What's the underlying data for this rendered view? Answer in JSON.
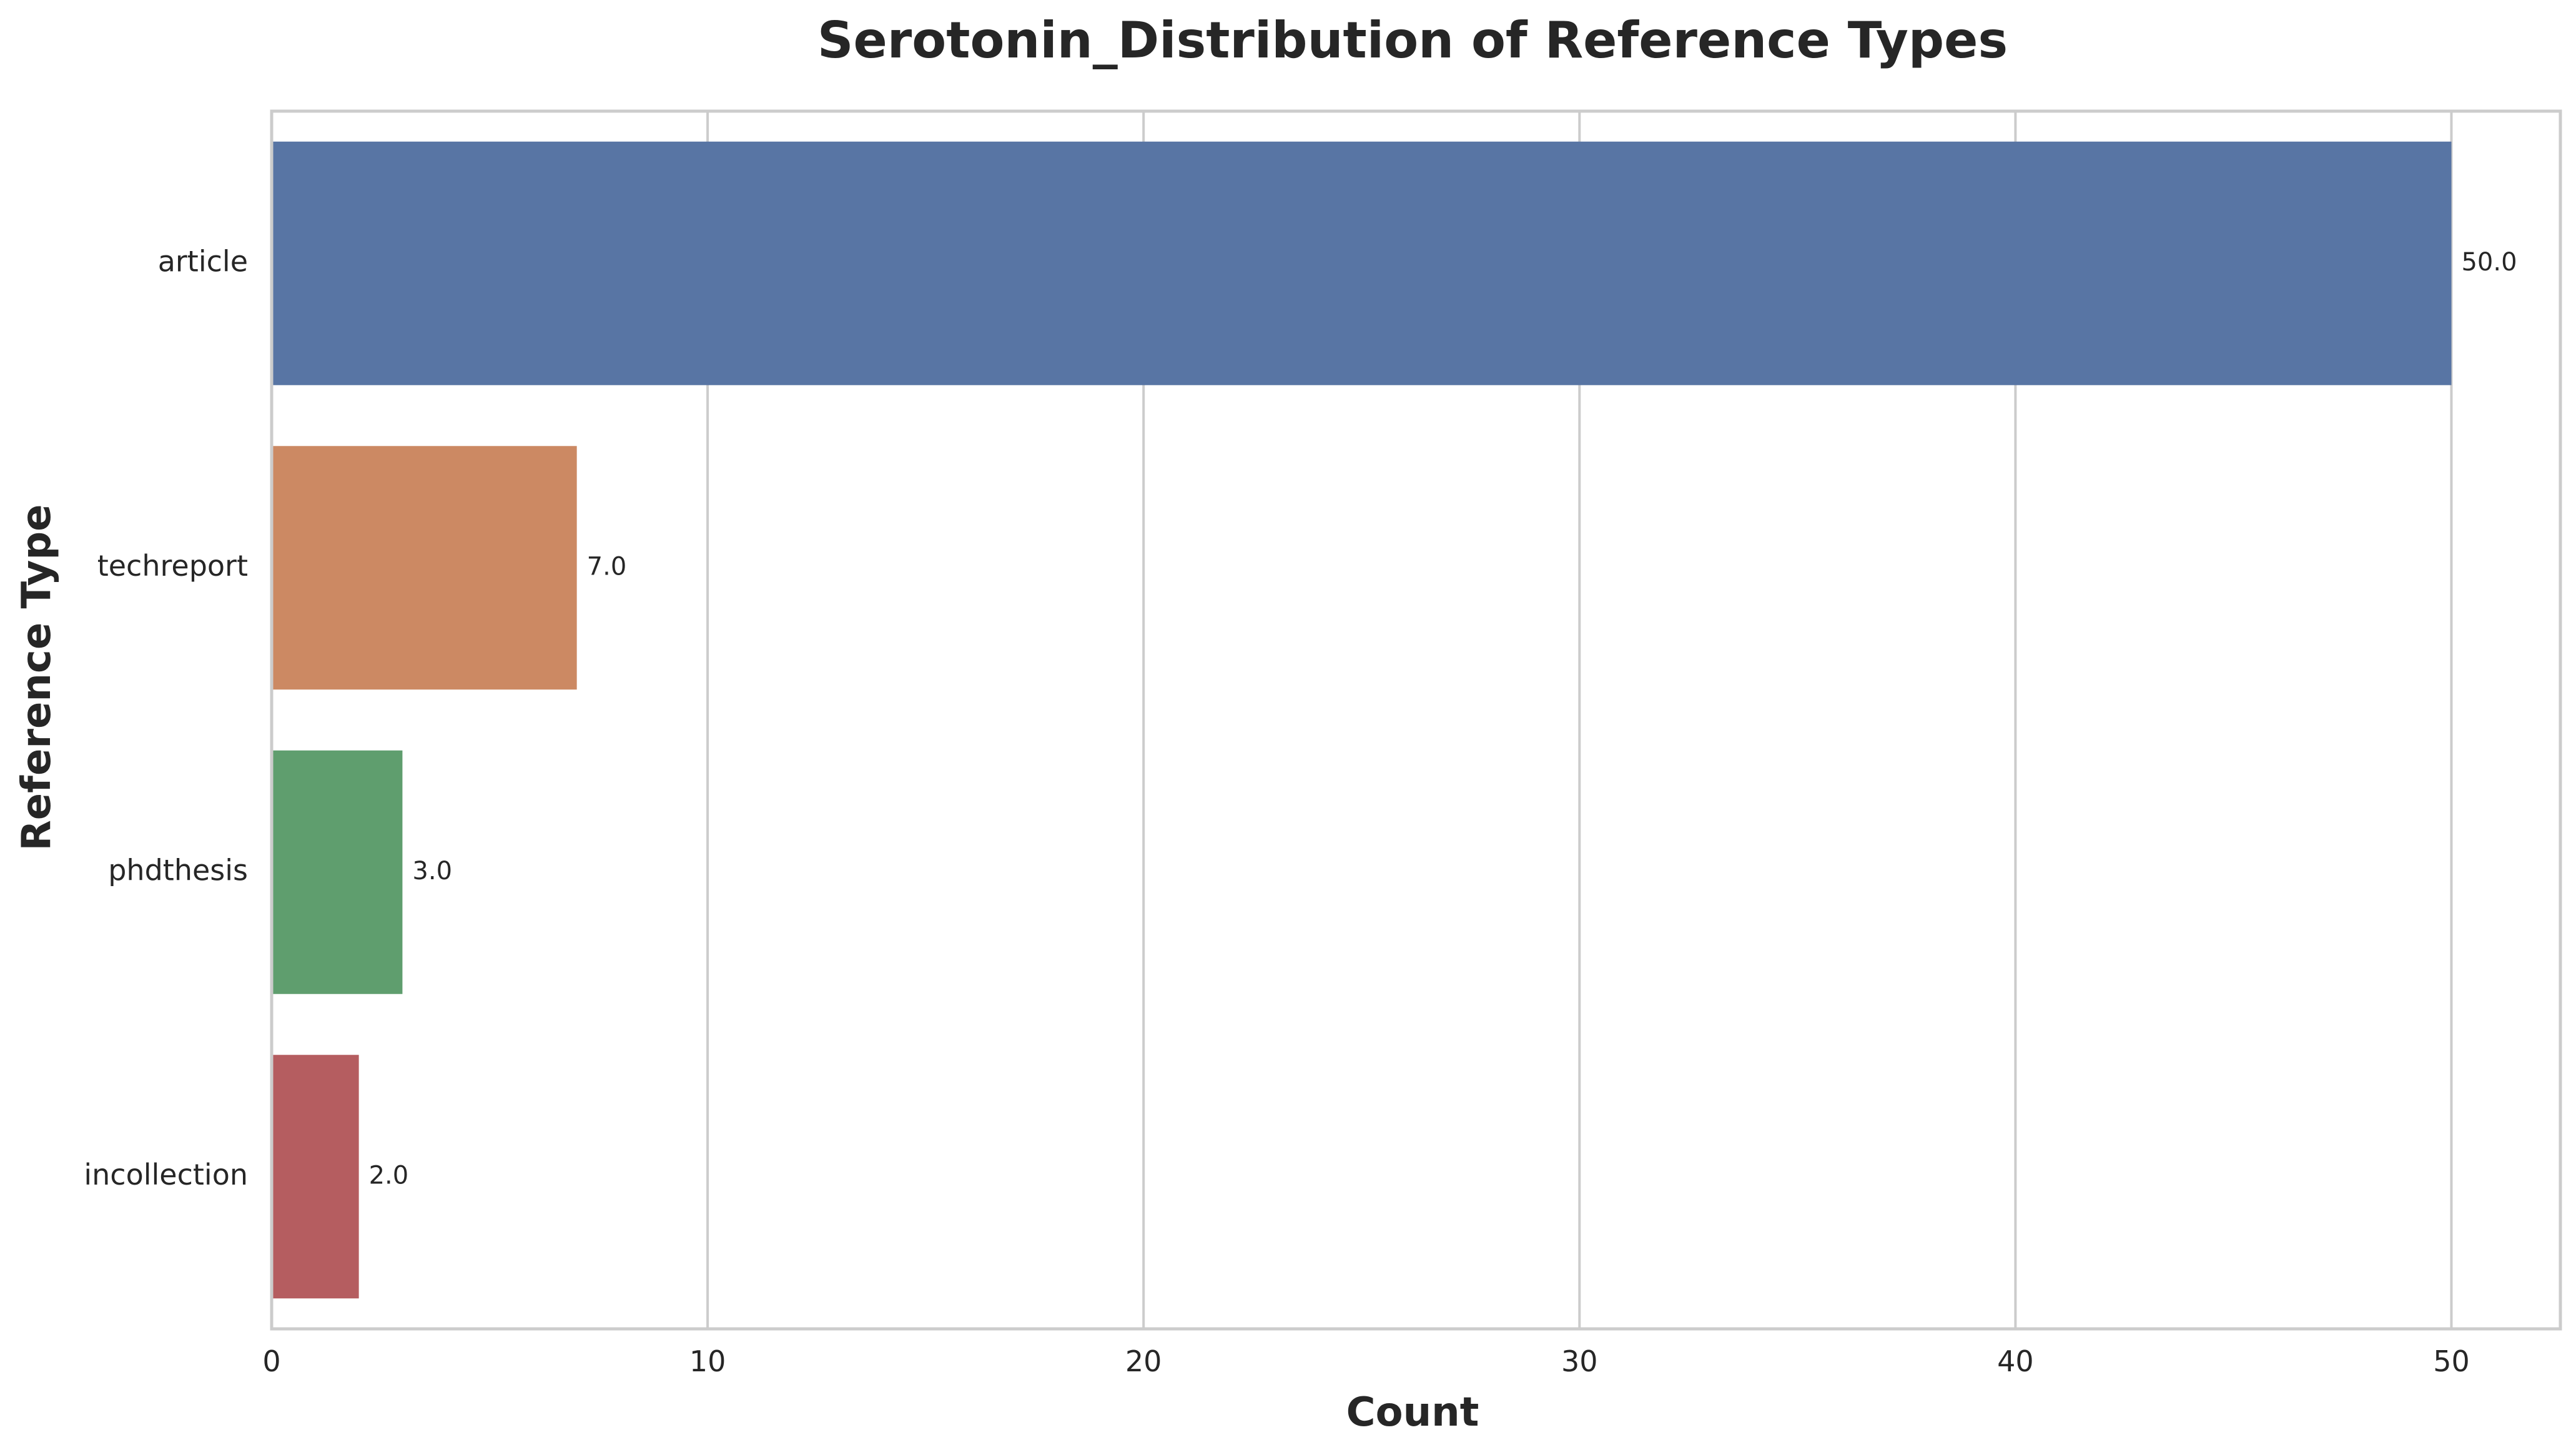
{
  "chart_data": {
    "type": "bar",
    "orientation": "horizontal",
    "title": "Serotonin_Distribution of Reference Types",
    "xlabel": "Count",
    "ylabel": "Reference Type",
    "categories": [
      "article",
      "techreport",
      "phdthesis",
      "incollection"
    ],
    "values": [
      50,
      7,
      3,
      2
    ],
    "data_labels": [
      "50.0",
      "7.0",
      "3.0",
      "2.0"
    ],
    "colors": [
      "#5875a4",
      "#cc8963",
      "#5f9e6e",
      "#b55d60"
    ],
    "xlim": [
      0,
      52.5
    ],
    "xticks": [
      0,
      10,
      20,
      30,
      40,
      50
    ],
    "xtick_labels": [
      "0",
      "10",
      "20",
      "30",
      "40",
      "50"
    ],
    "grid": "vertical",
    "legend": "none",
    "grid_color": "#cccccc",
    "spine_color": "#cccccc"
  }
}
